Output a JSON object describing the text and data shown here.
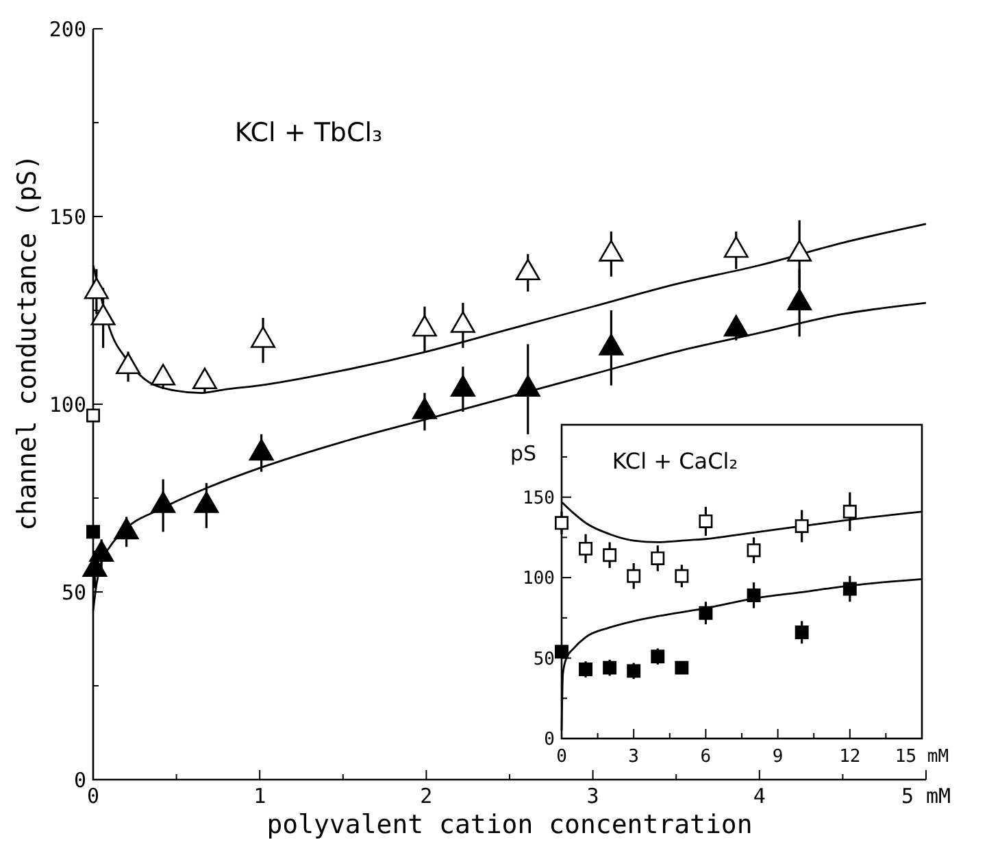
{
  "chart_data": [
    {
      "type": "scatter",
      "title": "KCl + TbCl₃",
      "xlabel": "polyvalent cation concentration",
      "ylabel": "channel conductance (pS)",
      "xlim": [
        0,
        5
      ],
      "ylim": [
        0,
        200
      ],
      "xticks": [
        0,
        {
          "value": 0.5,
          "label": null
        },
        1,
        {
          "value": 1.5,
          "label": null
        },
        2,
        {
          "value": 2.5,
          "label": null
        },
        3,
        {
          "value": 3.5,
          "label": null
        },
        4,
        {
          "value": 4.5,
          "label": null
        },
        {
          "value": 5,
          "label": "5 mM"
        }
      ],
      "yticks": [
        0,
        {
          "value": 25,
          "label": null
        },
        50,
        {
          "value": 75,
          "label": null
        },
        100,
        {
          "value": 125,
          "label": null
        },
        150,
        {
          "value": 175,
          "label": null
        },
        200
      ],
      "series": [
        {
          "type": "line",
          "color": "#000000",
          "marker": "none",
          "x": [
            0,
            0.05,
            0.1,
            0.2,
            0.3,
            0.45,
            0.65,
            0.8,
            1,
            1.5,
            2,
            2.5,
            3,
            3.5,
            4,
            4.5,
            5
          ],
          "values": [
            137,
            128,
            120,
            112,
            107,
            104,
            103,
            104,
            105,
            109,
            114,
            120,
            126,
            132,
            137,
            143,
            148
          ]
        },
        {
          "type": "line",
          "color": "#000000",
          "marker": "none",
          "x": [
            0,
            0.02,
            0.05,
            0.1,
            0.2,
            0.4,
            0.7,
            1,
            1.5,
            2,
            2.5,
            3,
            3.5,
            4,
            4.5,
            5
          ],
          "values": [
            45,
            52,
            58,
            62,
            67,
            72,
            78,
            83,
            90,
            96,
            102,
            108,
            114,
            119,
            124,
            127
          ]
        },
        {
          "color": "#ffffff",
          "marker": "triangle",
          "x": [
            0.02,
            0.06,
            0.21,
            0.42,
            0.67,
            1.02,
            1.99,
            2.22,
            2.61,
            3.11,
            3.86,
            4.24
          ],
          "values": [
            130,
            123,
            110,
            107,
            106,
            117,
            120,
            121,
            135,
            140,
            141,
            140
          ],
          "errors": [
            6,
            8,
            4,
            3,
            3,
            6,
            6,
            6,
            5,
            6,
            5,
            9
          ]
        },
        {
          "color": "#000000",
          "marker": "triangle",
          "x": [
            0.01,
            0.05,
            0.2,
            0.42,
            0.68,
            1.01,
            1.99,
            2.22,
            2.61,
            3.11,
            3.86,
            4.24
          ],
          "values": [
            56,
            60,
            66,
            73,
            73,
            87,
            98,
            104,
            104,
            115,
            120,
            127
          ],
          "errors": [
            5,
            4,
            4,
            7,
            6,
            5,
            5,
            6,
            12,
            10,
            3,
            9
          ]
        },
        {
          "color": "#ffffff",
          "marker": "square",
          "x": [
            0
          ],
          "values": [
            97
          ]
        },
        {
          "color": "#000000",
          "marker": "square",
          "x": [
            0
          ],
          "values": [
            66
          ]
        }
      ]
    },
    {
      "type": "scatter",
      "title": "KCl + CaCl₂",
      "ylabel": "pS",
      "xlim": [
        0,
        15
      ],
      "ylim": [
        0,
        195
      ],
      "xticks": [
        0,
        {
          "value": 1.5,
          "label": null
        },
        3,
        {
          "value": 4.5,
          "label": null
        },
        6,
        {
          "value": 7.5,
          "label": null
        },
        9,
        {
          "value": 10.5,
          "label": null
        },
        12,
        {
          "value": 13.5,
          "label": null
        },
        {
          "value": 15,
          "label": "15 mM"
        }
      ],
      "yticks": [
        0,
        {
          "value": 25,
          "label": null
        },
        50,
        {
          "value": 75,
          "label": null
        },
        100,
        {
          "value": 125,
          "label": null
        },
        150,
        {
          "value": 175,
          "label": null
        }
      ],
      "series": [
        {
          "type": "line",
          "color": "#000000",
          "marker": "none",
          "x": [
            0,
            0.5,
            1,
            2,
            3,
            4,
            5,
            6,
            8,
            10,
            12,
            15
          ],
          "values": [
            147,
            140,
            134,
            127,
            123,
            122,
            123,
            124,
            128,
            132,
            136,
            141
          ]
        },
        {
          "type": "line",
          "color": "#000000",
          "marker": "none",
          "x": [
            0,
            0.05,
            0.2,
            0.5,
            1,
            2,
            3,
            4,
            6,
            8,
            10,
            12,
            15
          ],
          "values": [
            5,
            40,
            50,
            56,
            63,
            69,
            73,
            76,
            81,
            87,
            91,
            95,
            99
          ]
        },
        {
          "color": "#ffffff",
          "marker": "square",
          "x": [
            0,
            1,
            2,
            3,
            4,
            5,
            6,
            8,
            10,
            12
          ],
          "values": [
            134,
            118,
            114,
            101,
            112,
            101,
            135,
            117,
            132,
            141
          ],
          "errors": [
            7,
            9,
            8,
            8,
            8,
            7,
            9,
            8,
            10,
            12
          ]
        },
        {
          "color": "#000000",
          "marker": "square",
          "x": [
            0,
            1,
            2,
            3,
            4,
            5,
            6,
            8,
            10,
            12
          ],
          "values": [
            54,
            43,
            44,
            42,
            51,
            44,
            78,
            89,
            66,
            93
          ],
          "errors": [
            4,
            5,
            5,
            5,
            5,
            4,
            7,
            8,
            7,
            8
          ]
        }
      ]
    }
  ]
}
